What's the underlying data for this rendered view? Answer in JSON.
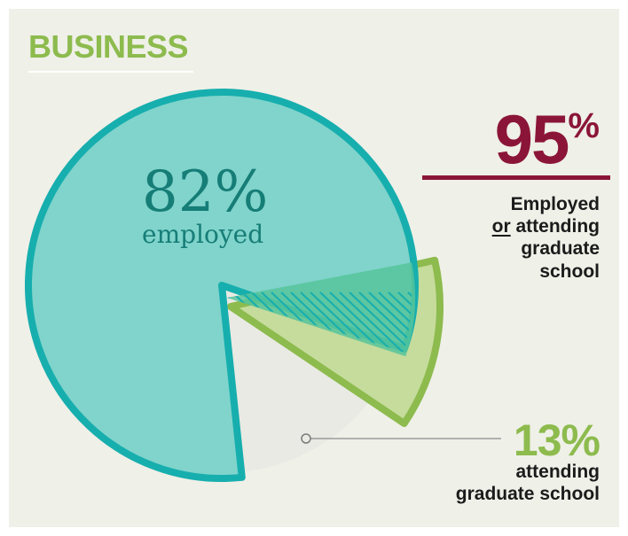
{
  "title": "BUSINESS",
  "stat_total": {
    "value": "95",
    "unit": "%",
    "label_line1": "Employed",
    "label_or": "or",
    "label_line2_rest": " attending",
    "label_line3": "graduate",
    "label_line4": "school"
  },
  "stat_grad": {
    "value": "13%",
    "label_line1": "attending",
    "label_line2": "graduate school"
  },
  "pie_label": {
    "value": "82%",
    "word": "employed"
  },
  "colors": {
    "employed_fill": "#80d4cb",
    "employed_stroke": "#17aeae",
    "grad_fill": "#c6dc9c",
    "grad_stroke": "#8dbb4e",
    "overlap_fill": "#56c49b",
    "accent": "#8b1538",
    "neutral_slice": "#e9eae3"
  },
  "chart_data": {
    "type": "pie",
    "title": "BUSINESS",
    "slices": [
      {
        "label": "employed",
        "value": 82
      },
      {
        "label": "attending graduate school",
        "value": 13
      }
    ],
    "overlap_total": 95,
    "annotations": [
      "82% employed",
      "13% attending graduate school",
      "95% Employed or attending graduate school"
    ]
  }
}
